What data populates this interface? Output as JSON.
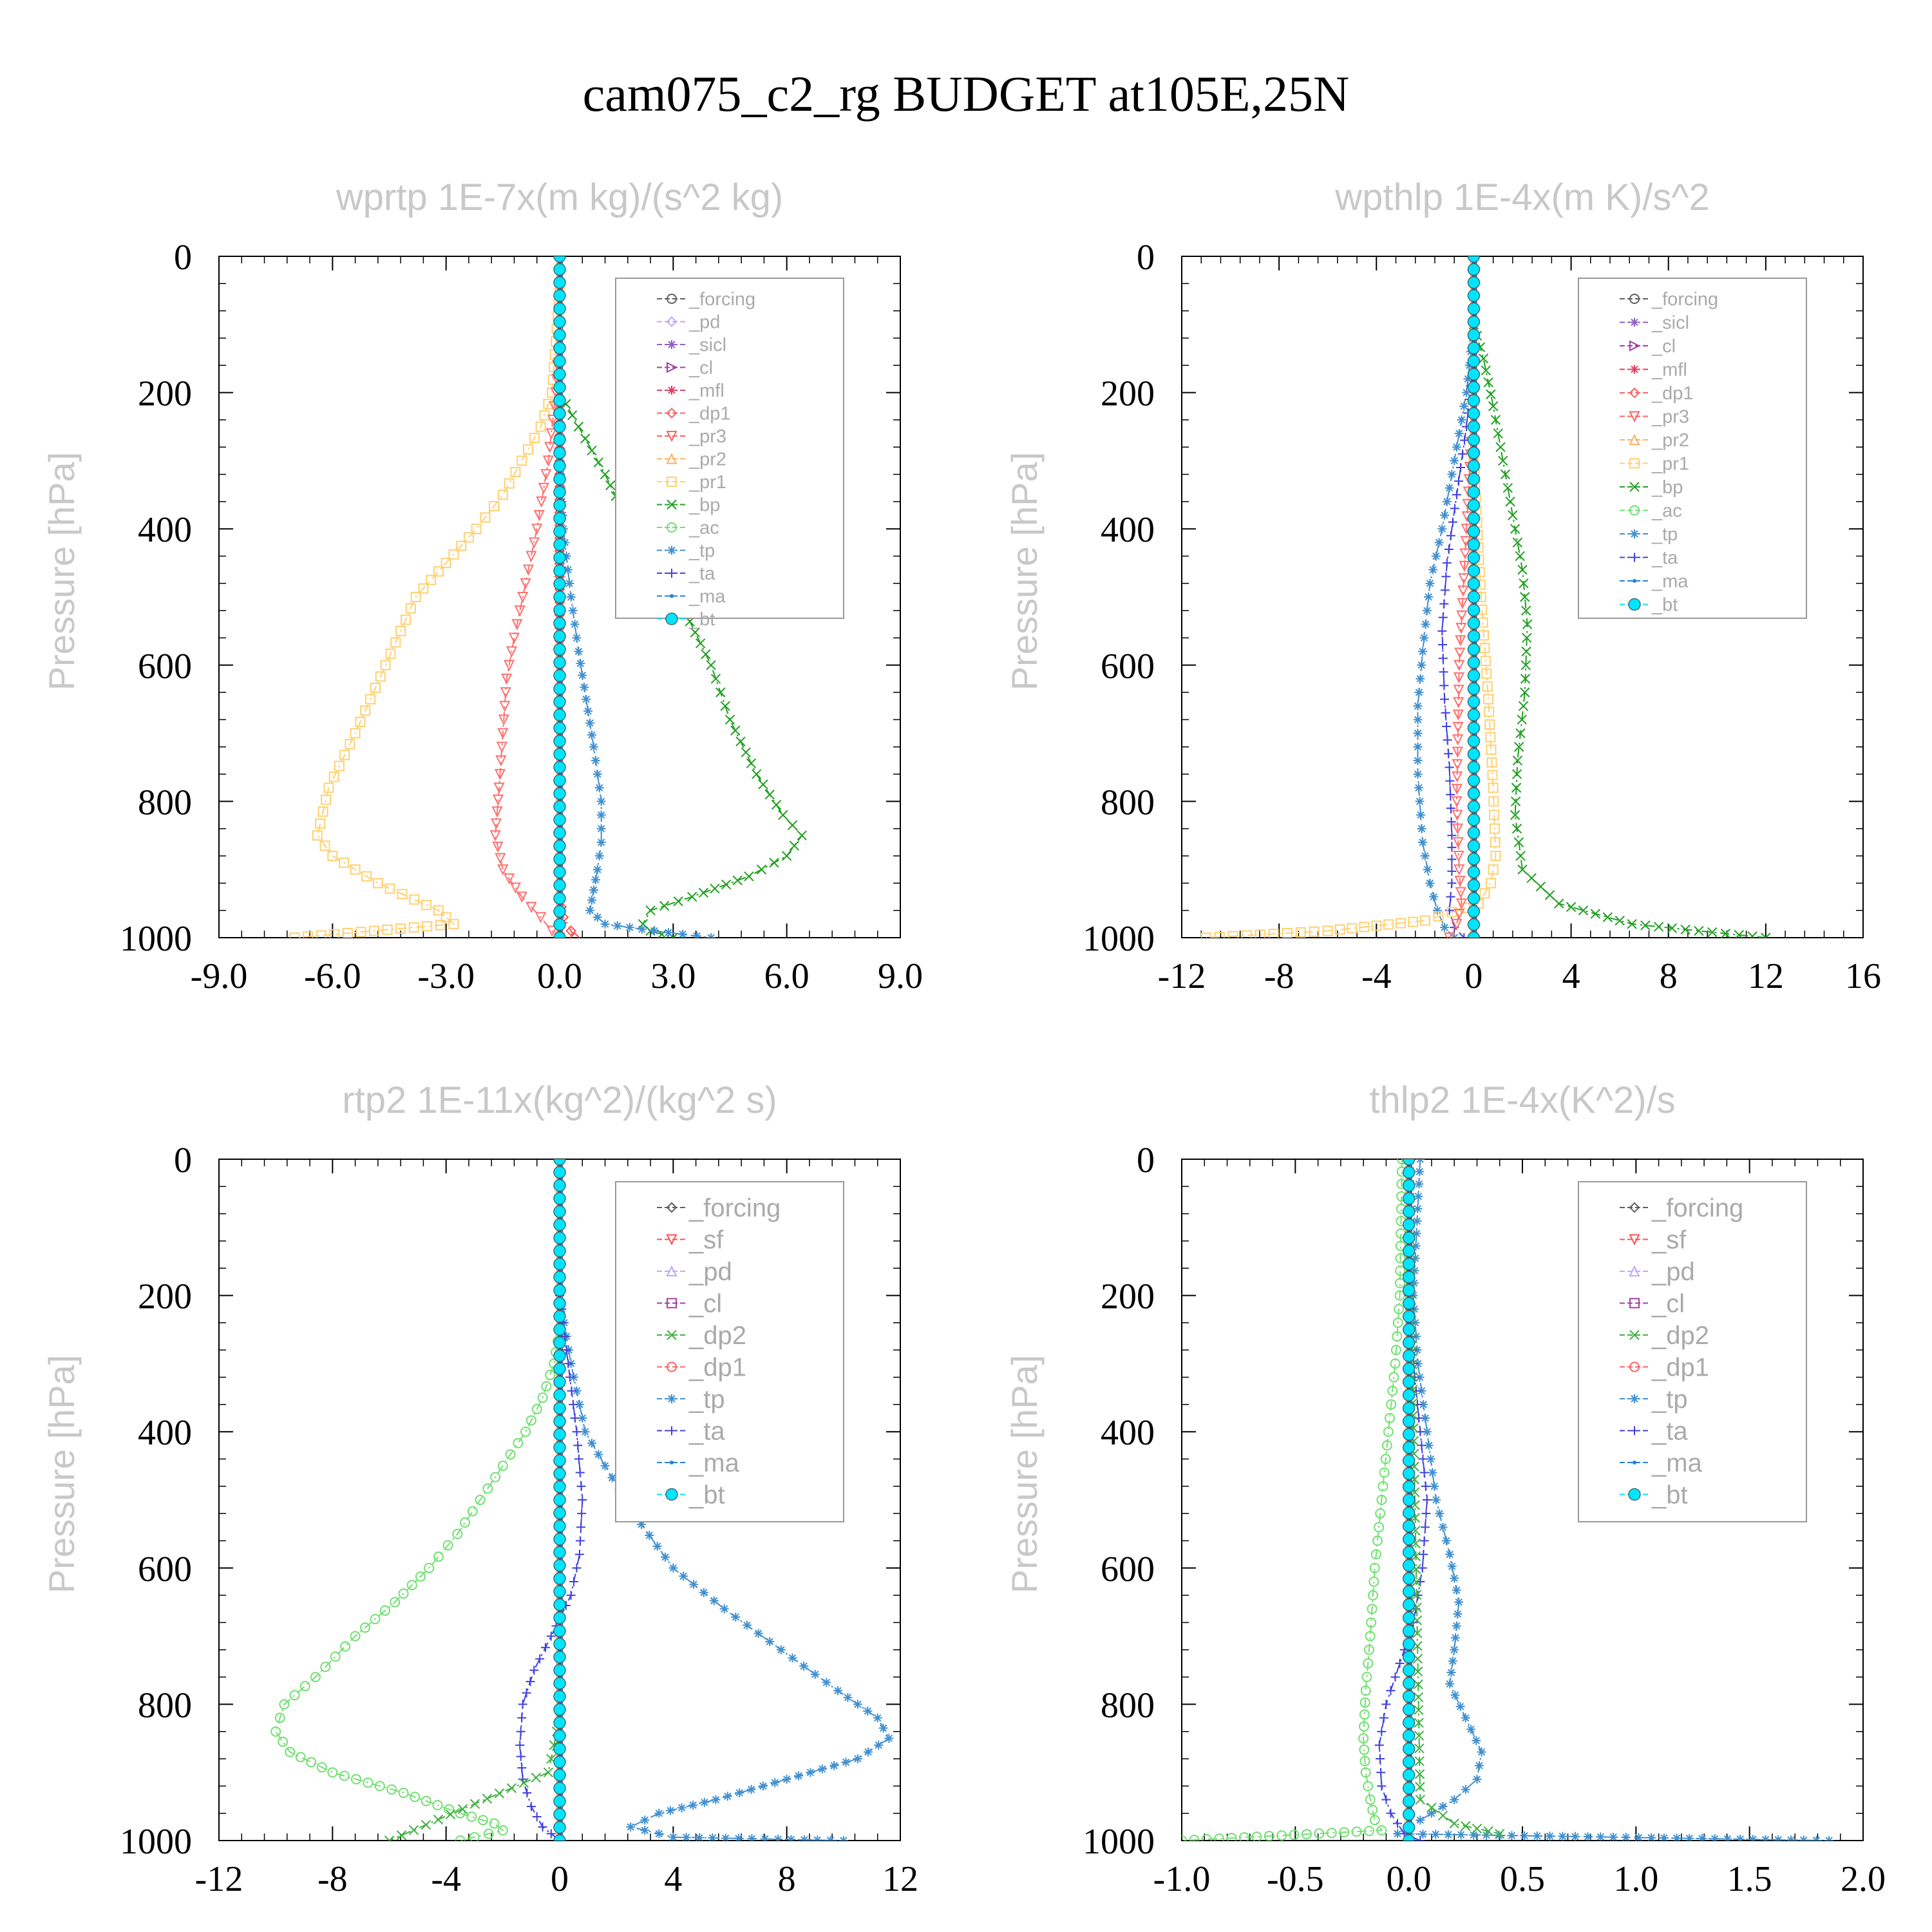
{
  "title": "cam075_c2_rg  BUDGET at105E,25N",
  "chart_data": [
    {
      "type": "line",
      "title": "wprtp  1E-7x(m kg)/(s^2 kg)",
      "ylabel": "Pressure [hPa]",
      "ylim": [
        1000,
        0
      ],
      "xlim": [
        -9,
        9
      ],
      "xticks": [
        "-9.0",
        "-6.0",
        "-3.0",
        "0.0",
        "3.0",
        "6.0",
        "9.0"
      ],
      "yticks": [
        "0",
        "200",
        "400",
        "600",
        "800",
        "1000"
      ],
      "legend": "top-right",
      "legend_entries": [
        "_forcing",
        "_pd",
        "_sicl",
        "_cl",
        "_mfl",
        "_dp1",
        "_pr3",
        "_pr2",
        "_pr1",
        "_bp",
        "_ac",
        "_tp",
        "_ta",
        "_ma",
        "_bt"
      ],
      "series": [
        {
          "name": "_pr1",
          "color": "#ffd070",
          "marker": "square",
          "x": [
            0,
            -0.2,
            -0.5,
            -1.0,
            -1.5,
            -2.2,
            -3.0,
            -3.8,
            -4.6,
            -5.4,
            -6.1,
            -6.4,
            -6.0,
            -4.8,
            -3.2,
            -2.8,
            -7.0
          ],
          "y": [
            50,
            200,
            250,
            300,
            350,
            400,
            450,
            500,
            600,
            700,
            780,
            850,
            880,
            920,
            960,
            980,
            1000
          ]
        },
        {
          "name": "_pr3",
          "color": "#ff7070",
          "marker": "triangle-down",
          "x": [
            0,
            -0.1,
            -0.3,
            -0.6,
            -0.9,
            -1.2,
            -1.4,
            -1.5,
            -1.6,
            -1.7,
            -1.5,
            -1.0,
            -0.5,
            -0.2,
            0
          ],
          "y": [
            100,
            200,
            300,
            400,
            480,
            560,
            620,
            700,
            780,
            850,
            900,
            940,
            970,
            990,
            1000
          ]
        },
        {
          "name": "_dp1",
          "color": "#ff5050",
          "marker": "diamond",
          "x": [
            0,
            0,
            0.1,
            0.3,
            0.4
          ],
          "y": [
            0,
            940,
            970,
            990,
            1000
          ]
        },
        {
          "name": "_bp",
          "color": "#20a020",
          "marker": "x",
          "x": [
            0,
            0.5,
            1.2,
            1.9,
            2.6,
            3.3,
            4.0,
            4.5,
            5.2,
            5.9,
            6.4,
            6.0,
            5.0,
            3.5,
            2.4,
            2.2,
            2.4,
            3.0
          ],
          "y": [
            200,
            250,
            320,
            400,
            460,
            520,
            600,
            680,
            760,
            820,
            850,
            880,
            910,
            940,
            960,
            980,
            990,
            1000
          ]
        },
        {
          "name": "_tp",
          "color": "#4090d0",
          "marker": "asterisk",
          "x": [
            0,
            0.1,
            0.3,
            0.5,
            0.7,
            0.9,
            1.1,
            1.1,
            1.0,
            0.9,
            0.8,
            1.2,
            2.5,
            4.0
          ],
          "y": [
            300,
            400,
            500,
            580,
            650,
            720,
            800,
            860,
            900,
            930,
            960,
            980,
            990,
            1000
          ]
        },
        {
          "name": "_bt",
          "color": "#00e5ff",
          "marker": "dot",
          "x": [
            0,
            0
          ],
          "y": [
            0,
            1000
          ]
        }
      ]
    },
    {
      "type": "line",
      "title": "wpthlp  1E-4x(m K)/s^2",
      "ylabel": "Pressure [hPa]",
      "ylim": [
        1000,
        0
      ],
      "xlim": [
        -12,
        16
      ],
      "xticks": [
        "-12",
        "-8",
        "-4",
        "0",
        "4",
        "8",
        "12",
        "16"
      ],
      "yticks": [
        "0",
        "200",
        "400",
        "600",
        "800",
        "1000"
      ],
      "legend": "top-right",
      "legend_entries": [
        "_forcing",
        "_sicl",
        "_cl",
        "_mfl",
        "_dp1",
        "_pr3",
        "_pr2",
        "_pr1",
        "_bp",
        "_ac",
        "_tp",
        "_ta",
        "_ma",
        "_bt"
      ],
      "series": [
        {
          "name": "_bp",
          "color": "#20a020",
          "marker": "x",
          "x": [
            0,
            0.4,
            0.8,
            1.2,
            1.6,
            2.0,
            2.2,
            2.1,
            1.8,
            1.7,
            2.0,
            3.5,
            6.5,
            12.0
          ],
          "y": [
            100,
            150,
            220,
            300,
            380,
            460,
            540,
            640,
            740,
            820,
            900,
            950,
            980,
            1000
          ]
        },
        {
          "name": "_tp",
          "color": "#4090d0",
          "marker": "asterisk",
          "x": [
            0,
            -0.3,
            -0.8,
            -1.3,
            -1.8,
            -2.1,
            -2.3,
            -2.3,
            -2.1,
            -1.8,
            -1.5,
            -1.2,
            -0.8
          ],
          "y": [
            100,
            200,
            300,
            400,
            480,
            580,
            660,
            760,
            860,
            920,
            960,
            985,
            1000
          ]
        },
        {
          "name": "_ta",
          "color": "#4040e0",
          "marker": "plus",
          "x": [
            0,
            -0.3,
            -0.7,
            -1.1,
            -1.3,
            -1.2,
            -1.0,
            -0.9,
            -0.9,
            -1.0,
            -0.8,
            -0.4
          ],
          "y": [
            150,
            250,
            350,
            450,
            550,
            650,
            750,
            850,
            920,
            960,
            985,
            1000
          ]
        },
        {
          "name": "_pr1",
          "color": "#ffd070",
          "marker": "square",
          "x": [
            0,
            0.3,
            0.6,
            0.8,
            0.9,
            0.7,
            0.2,
            -2.0,
            -6.0,
            -11.0
          ],
          "y": [
            300,
            500,
            650,
            780,
            880,
            920,
            950,
            975,
            990,
            1000
          ]
        },
        {
          "name": "_pr3",
          "color": "#ff7070",
          "marker": "triangle-down",
          "x": [
            0,
            -0.3,
            -0.6,
            -0.7,
            -0.6,
            -0.5,
            -0.7,
            -1.0
          ],
          "y": [
            200,
            400,
            600,
            800,
            900,
            950,
            980,
            1000
          ]
        },
        {
          "name": "_bt",
          "color": "#00e5ff",
          "marker": "dot",
          "x": [
            0,
            0
          ],
          "y": [
            0,
            1000
          ]
        }
      ]
    },
    {
      "type": "line",
      "title": "rtp2  1E-11x(kg^2)/(kg^2 s)",
      "ylabel": "Pressure [hPa]",
      "ylim": [
        1000,
        0
      ],
      "xlim": [
        -12,
        12
      ],
      "xticks": [
        "-12",
        "-8",
        "-4",
        "0",
        "4",
        "8",
        "12"
      ],
      "yticks": [
        "0",
        "200",
        "400",
        "600",
        "800",
        "1000"
      ],
      "legend": "top-right",
      "legend_entries": [
        "_forcing",
        "_sf",
        "_pd",
        "_cl",
        "_dp2",
        "_dp1",
        "_tp",
        "_ta",
        "_ma",
        "_bt"
      ],
      "series": [
        {
          "name": "_dp1",
          "color": "#70e070",
          "marker": "circle",
          "x": [
            0,
            -0.2,
            -0.6,
            -1.2,
            -2.0,
            -2.8,
            -3.6,
            -4.6,
            -5.8,
            -7.2,
            -8.6,
            -9.7,
            -10.0,
            -9.5,
            -8.0,
            -5.5,
            -3.5,
            -2.3,
            -2.0,
            -3.5
          ],
          "y": [
            250,
            300,
            350,
            400,
            450,
            500,
            550,
            600,
            650,
            700,
            760,
            800,
            840,
            870,
            900,
            930,
            960,
            975,
            985,
            1000
          ]
        },
        {
          "name": "_tp",
          "color": "#4090d0",
          "marker": "asterisk",
          "x": [
            0,
            0.4,
            0.9,
            1.6,
            2.6,
            4.0,
            5.8,
            7.8,
            9.8,
            11.2,
            11.6,
            10.5,
            8.0,
            5.5,
            3.5,
            2.5,
            4.0,
            10.0
          ],
          "y": [
            200,
            300,
            400,
            450,
            520,
            600,
            660,
            720,
            780,
            820,
            850,
            880,
            910,
            940,
            960,
            980,
            995,
            1000
          ]
        },
        {
          "name": "_ta",
          "color": "#4040e0",
          "marker": "plus",
          "x": [
            0,
            0.3,
            0.6,
            0.8,
            0.7,
            0.4,
            -0.3,
            -0.9,
            -1.3,
            -1.4,
            -1.3,
            -1.0,
            -0.6,
            0
          ],
          "y": [
            200,
            300,
            400,
            500,
            580,
            640,
            700,
            750,
            800,
            860,
            910,
            950,
            980,
            1000
          ]
        },
        {
          "name": "_dp2",
          "color": "#40b040",
          "marker": "x",
          "x": [
            0,
            -0.2,
            -0.4,
            -6.0
          ],
          "y": [
            820,
            860,
            900,
            1000
          ]
        },
        {
          "name": "_bt",
          "color": "#00e5ff",
          "marker": "dot",
          "x": [
            0,
            0
          ],
          "y": [
            0,
            1000
          ]
        }
      ]
    },
    {
      "type": "line",
      "title": "thlp2  1E-4x(K^2)/s",
      "ylabel": "Pressure [hPa]",
      "ylim": [
        1000,
        0
      ],
      "xlim": [
        -1.0,
        2.0
      ],
      "xticks": [
        "-1.0",
        "-0.5",
        "0.0",
        "0.5",
        "1.0",
        "1.5",
        "2.0"
      ],
      "yticks": [
        "0",
        "200",
        "400",
        "600",
        "800",
        "1000"
      ],
      "legend": "top-right",
      "legend_entries": [
        "_forcing",
        "_sf",
        "_pd",
        "_cl",
        "_dp2",
        "_dp1",
        "_tp",
        "_ta",
        "_ma",
        "_bt"
      ],
      "series": [
        {
          "name": "_dp1",
          "color": "#70e070",
          "marker": "circle",
          "x": [
            -0.03,
            -0.04,
            -0.06,
            -0.09,
            -0.12,
            -0.15,
            -0.17,
            -0.19,
            -0.2,
            -0.19,
            -0.17,
            -0.15,
            -0.12,
            -1.0
          ],
          "y": [
            0,
            200,
            300,
            400,
            500,
            600,
            700,
            780,
            850,
            900,
            940,
            970,
            985,
            1000
          ]
        },
        {
          "name": "_tp",
          "color": "#4090d0",
          "marker": "asterisk",
          "x": [
            0.05,
            0.02,
            0.04,
            0.08,
            0.12,
            0.18,
            0.22,
            0.2,
            0.18,
            0.25,
            0.32,
            0.3,
            0.2,
            0.05,
            -0.05,
            1.85
          ],
          "y": [
            0,
            200,
            300,
            400,
            500,
            580,
            650,
            720,
            770,
            820,
            870,
            910,
            940,
            970,
            990,
            1000
          ]
        },
        {
          "name": "_ta",
          "color": "#4040e0",
          "marker": "plus",
          "x": [
            0,
            0.02,
            0.05,
            0.08,
            0.06,
            0.02,
            -0.04,
            -0.1,
            -0.13,
            -0.12,
            -0.08,
            -0.02,
            0.05
          ],
          "y": [
            200,
            300,
            400,
            500,
            600,
            680,
            740,
            800,
            860,
            920,
            960,
            990,
            1000
          ]
        },
        {
          "name": "_dp2",
          "color": "#40b040",
          "marker": "x",
          "x": [
            0,
            0.05,
            0.2,
            0.4
          ],
          "y": [
            0,
            940,
            975,
            990
          ]
        },
        {
          "name": "_bt",
          "color": "#00e5ff",
          "marker": "dot",
          "x": [
            0,
            0
          ],
          "y": [
            0,
            1000
          ]
        }
      ]
    }
  ]
}
